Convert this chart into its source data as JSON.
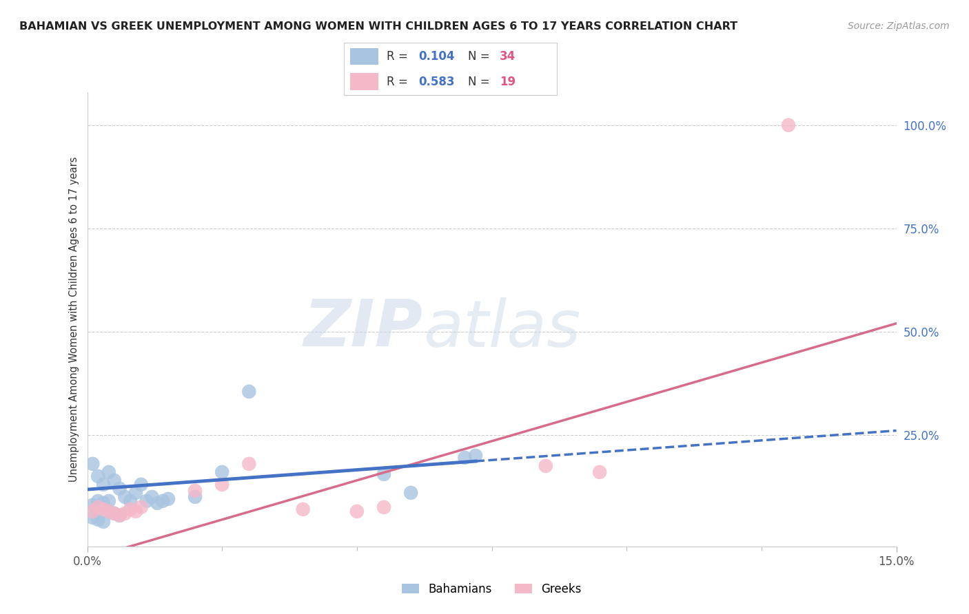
{
  "title": "BAHAMIAN VS GREEK UNEMPLOYMENT AMONG WOMEN WITH CHILDREN AGES 6 TO 17 YEARS CORRELATION CHART",
  "source": "Source: ZipAtlas.com",
  "ylabel": "Unemployment Among Women with Children Ages 6 to 17 years",
  "xlim": [
    0.0,
    0.15
  ],
  "ylim": [
    -0.02,
    1.08
  ],
  "plot_ylim": [
    0.0,
    1.05
  ],
  "xticks": [
    0.0,
    0.15
  ],
  "ytick_positions_right": [
    0.25,
    0.5,
    0.75,
    1.0
  ],
  "ytick_labels_right": [
    "25.0%",
    "50.0%",
    "75.0%",
    "100.0%"
  ],
  "bahamian_color": "#a8c4e0",
  "greek_color": "#f4b8c8",
  "trend_bahamian_color": "#4472c4",
  "trend_greek_color": "#d96b8a",
  "R_bahamian": 0.104,
  "N_bahamian": 34,
  "R_greek": 0.583,
  "N_greek": 19,
  "legend_R_color": "#4472c4",
  "legend_N_color": "#e05580",
  "background_color": "#ffffff",
  "trend_b_intercept": 0.118,
  "trend_b_slope": 0.95,
  "trend_g_intercept": -0.05,
  "trend_g_slope": 3.8,
  "trend_b_solid_end": 0.072,
  "bahamian_points": [
    [
      0.001,
      0.18
    ],
    [
      0.002,
      0.15
    ],
    [
      0.003,
      0.13
    ],
    [
      0.004,
      0.16
    ],
    [
      0.005,
      0.14
    ],
    [
      0.006,
      0.12
    ],
    [
      0.007,
      0.1
    ],
    [
      0.008,
      0.09
    ],
    [
      0.009,
      0.11
    ],
    [
      0.01,
      0.13
    ],
    [
      0.011,
      0.09
    ],
    [
      0.012,
      0.1
    ],
    [
      0.013,
      0.085
    ],
    [
      0.014,
      0.09
    ],
    [
      0.015,
      0.095
    ],
    [
      0.002,
      0.075
    ],
    [
      0.003,
      0.07
    ],
    [
      0.004,
      0.065
    ],
    [
      0.005,
      0.06
    ],
    [
      0.006,
      0.055
    ],
    [
      0.001,
      0.05
    ],
    [
      0.002,
      0.045
    ],
    [
      0.003,
      0.04
    ],
    [
      0.001,
      0.08
    ],
    [
      0.002,
      0.09
    ],
    [
      0.003,
      0.085
    ],
    [
      0.004,
      0.09
    ],
    [
      0.02,
      0.1
    ],
    [
      0.025,
      0.16
    ],
    [
      0.03,
      0.355
    ],
    [
      0.055,
      0.155
    ],
    [
      0.06,
      0.11
    ],
    [
      0.07,
      0.195
    ],
    [
      0.072,
      0.2
    ]
  ],
  "greek_points": [
    [
      0.001,
      0.065
    ],
    [
      0.002,
      0.075
    ],
    [
      0.003,
      0.07
    ],
    [
      0.004,
      0.065
    ],
    [
      0.005,
      0.06
    ],
    [
      0.006,
      0.055
    ],
    [
      0.007,
      0.06
    ],
    [
      0.008,
      0.07
    ],
    [
      0.009,
      0.065
    ],
    [
      0.01,
      0.075
    ],
    [
      0.02,
      0.115
    ],
    [
      0.025,
      0.13
    ],
    [
      0.03,
      0.18
    ],
    [
      0.04,
      0.07
    ],
    [
      0.05,
      0.065
    ],
    [
      0.055,
      0.075
    ],
    [
      0.085,
      0.175
    ],
    [
      0.095,
      0.16
    ],
    [
      0.13,
      1.0
    ]
  ]
}
